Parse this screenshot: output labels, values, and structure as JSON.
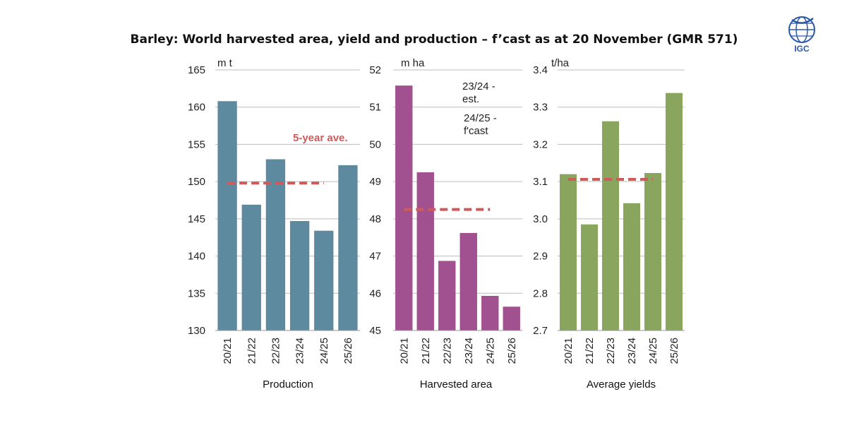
{
  "title": "Barley: World harvested area, yield and production – f’cast as at 20 November (GMR 571)",
  "logo": {
    "text": "IGC",
    "color": "#2a5aa8"
  },
  "chart_data": [
    {
      "type": "bar",
      "name": "production",
      "xlabel": "Production",
      "unit": "m t",
      "categories": [
        "20/21",
        "21/22",
        "22/23",
        "23/24",
        "24/25",
        "25/26"
      ],
      "values": [
        160.8,
        146.9,
        153.0,
        144.7,
        143.4,
        152.2
      ],
      "ylim": [
        130,
        165
      ],
      "yticks": [
        "130",
        "135",
        "140",
        "145",
        "150",
        "155",
        "160",
        "165"
      ],
      "five_year_average": 149.8,
      "color": "#5e8aa0",
      "annotations": {
        "average_label": "5-year ave."
      }
    },
    {
      "type": "bar",
      "name": "harvested_area",
      "xlabel": "Harvested area",
      "unit": "m ha",
      "categories": [
        "20/21",
        "21/22",
        "22/23",
        "23/24",
        "24/25",
        "25/26"
      ],
      "values": [
        51.58,
        49.25,
        46.87,
        47.62,
        45.93,
        45.64
      ],
      "ylim": [
        45,
        52
      ],
      "yticks": [
        "45",
        "46",
        "47",
        "48",
        "49",
        "50",
        "51",
        "52"
      ],
      "five_year_average": 48.25,
      "color": "#a15190",
      "annotations": {
        "est": "23/24 - est.",
        "fcast": "24/25 - f'cast"
      }
    },
    {
      "type": "bar",
      "name": "average_yields",
      "xlabel": "Average yields",
      "unit": "t/ha",
      "categories": [
        "20/21",
        "21/22",
        "22/23",
        "23/24",
        "24/25",
        "25/26"
      ],
      "values": [
        3.12,
        2.985,
        3.262,
        3.042,
        3.123,
        3.338
      ],
      "ylim": [
        2.7,
        3.4
      ],
      "yticks": [
        "2.7",
        "2.8",
        "2.9",
        "3.0",
        "3.1",
        "3.2",
        "3.3",
        "3.4"
      ],
      "five_year_average": 3.106,
      "color": "#8aa55e"
    }
  ],
  "average_line_color": "#d05a5a"
}
